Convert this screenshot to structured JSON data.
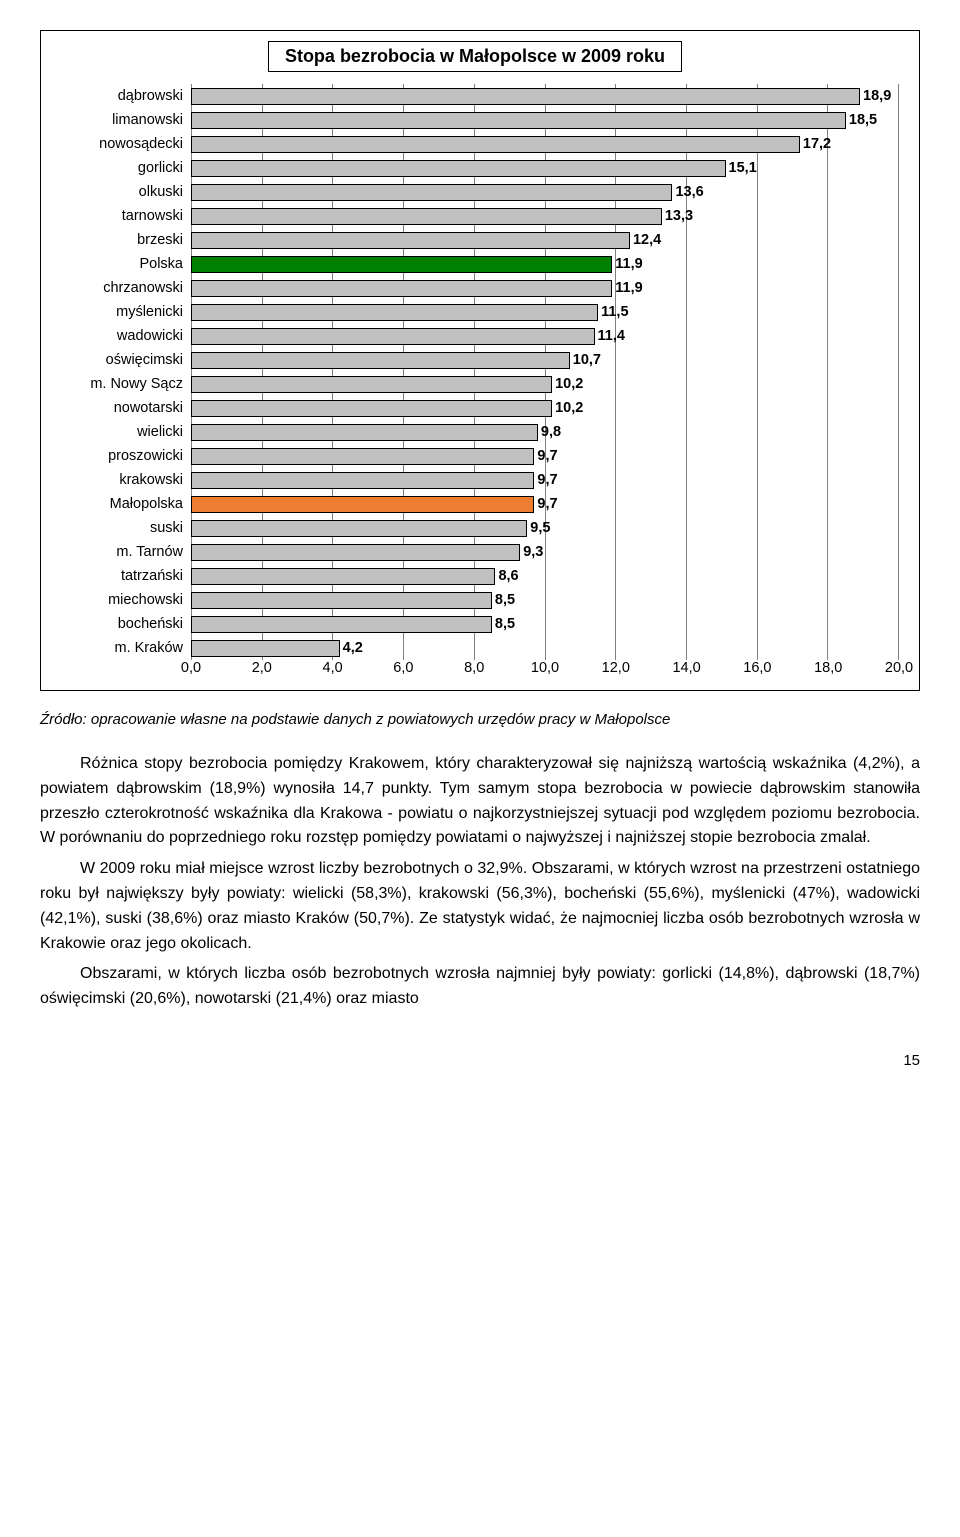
{
  "chart": {
    "type": "bar-horizontal",
    "title": "Stopa bezrobocia w Małopolsce w 2009 roku",
    "title_fontsize": 18,
    "xlim": [
      0,
      20
    ],
    "xtick_step": 2,
    "xticks": [
      "0,0",
      "2,0",
      "4,0",
      "6,0",
      "8,0",
      "10,0",
      "12,0",
      "14,0",
      "16,0",
      "18,0",
      "20,0"
    ],
    "bar_border_color": "#000000",
    "grid_color": "#808080",
    "background_color": "#ffffff",
    "default_bar_color": "#c0c0c0",
    "label_fontsize": 14.5,
    "value_fontsize": 14.5,
    "value_fontweight": "bold",
    "rows": [
      {
        "label": "dąbrowski",
        "value": 18.9,
        "display": "18,9",
        "color": "#c0c0c0"
      },
      {
        "label": "limanowski",
        "value": 18.5,
        "display": "18,5",
        "color": "#c0c0c0"
      },
      {
        "label": "nowosądecki",
        "value": 17.2,
        "display": "17,2",
        "color": "#c0c0c0"
      },
      {
        "label": "gorlicki",
        "value": 15.1,
        "display": "15,1",
        "color": "#c0c0c0"
      },
      {
        "label": "olkuski",
        "value": 13.6,
        "display": "13,6",
        "color": "#c0c0c0"
      },
      {
        "label": "tarnowski",
        "value": 13.3,
        "display": "13,3",
        "color": "#c0c0c0"
      },
      {
        "label": "brzeski",
        "value": 12.4,
        "display": "12,4",
        "color": "#c0c0c0"
      },
      {
        "label": "Polska",
        "value": 11.9,
        "display": "11,9",
        "color": "#008000"
      },
      {
        "label": "chrzanowski",
        "value": 11.9,
        "display": "11,9",
        "color": "#c0c0c0"
      },
      {
        "label": "myślenicki",
        "value": 11.5,
        "display": "11,5",
        "color": "#c0c0c0"
      },
      {
        "label": "wadowicki",
        "value": 11.4,
        "display": "11,4",
        "color": "#c0c0c0"
      },
      {
        "label": "oświęcimski",
        "value": 10.7,
        "display": "10,7",
        "color": "#c0c0c0"
      },
      {
        "label": "m. Nowy Sącz",
        "value": 10.2,
        "display": "10,2",
        "color": "#c0c0c0"
      },
      {
        "label": "nowotarski",
        "value": 10.2,
        "display": "10,2",
        "color": "#c0c0c0"
      },
      {
        "label": "wielicki",
        "value": 9.8,
        "display": "9,8",
        "color": "#c0c0c0"
      },
      {
        "label": "proszowicki",
        "value": 9.7,
        "display": "9,7",
        "color": "#c0c0c0"
      },
      {
        "label": "krakowski",
        "value": 9.7,
        "display": "9,7",
        "color": "#c0c0c0"
      },
      {
        "label": "Małopolska",
        "value": 9.7,
        "display": "9,7",
        "color": "#ed7d31"
      },
      {
        "label": "suski",
        "value": 9.5,
        "display": "9,5",
        "color": "#c0c0c0"
      },
      {
        "label": "m. Tarnów",
        "value": 9.3,
        "display": "9,3",
        "color": "#c0c0c0"
      },
      {
        "label": "tatrzański",
        "value": 8.6,
        "display": "8,6",
        "color": "#c0c0c0"
      },
      {
        "label": "miechowski",
        "value": 8.5,
        "display": "8,5",
        "color": "#c0c0c0"
      },
      {
        "label": "bocheński",
        "value": 8.5,
        "display": "8,5",
        "color": "#c0c0c0"
      },
      {
        "label": "m. Kraków",
        "value": 4.2,
        "display": "4,2",
        "color": "#c0c0c0"
      }
    ]
  },
  "source": "Źródło: opracowanie własne na podstawie danych z powiatowych urzędów pracy w Małopolsce",
  "paragraphs": {
    "p1": "Różnica stopy bezrobocia pomiędzy Krakowem, który charakteryzował się najniższą wartością wskaźnika (4,2%), a powiatem dąbrowskim (18,9%) wynosiła 14,7 punkty. Tym samym stopa bezrobocia w powiecie dąbrowskim stanowiła przeszło czterokrotność wskaźnika dla Krakowa - powiatu o najkorzystniejszej sytuacji pod względem poziomu bezrobocia. W porównaniu do poprzedniego roku rozstęp pomiędzy powiatami o najwyższej i najniższej stopie bezrobocia zmalał.",
    "p2": "W 2009 roku miał miejsce wzrost liczby bezrobotnych o 32,9%. Obszarami, w których wzrost na przestrzeni ostatniego roku był największy były powiaty: wielicki (58,3%), krakowski (56,3%), bocheński (55,6%), myślenicki (47%), wadowicki (42,1%), suski (38,6%) oraz miasto Kraków (50,7%). Ze statystyk widać, że najmocniej liczba osób bezrobotnych wzrosła w Krakowie oraz jego okolicach.",
    "p3": "Obszarami, w których liczba osób bezrobotnych wzrosła najmniej były powiaty: gorlicki (14,8%), dąbrowski (18,7%) oświęcimski (20,6%), nowotarski (21,4%) oraz miasto"
  },
  "page_number": "15"
}
